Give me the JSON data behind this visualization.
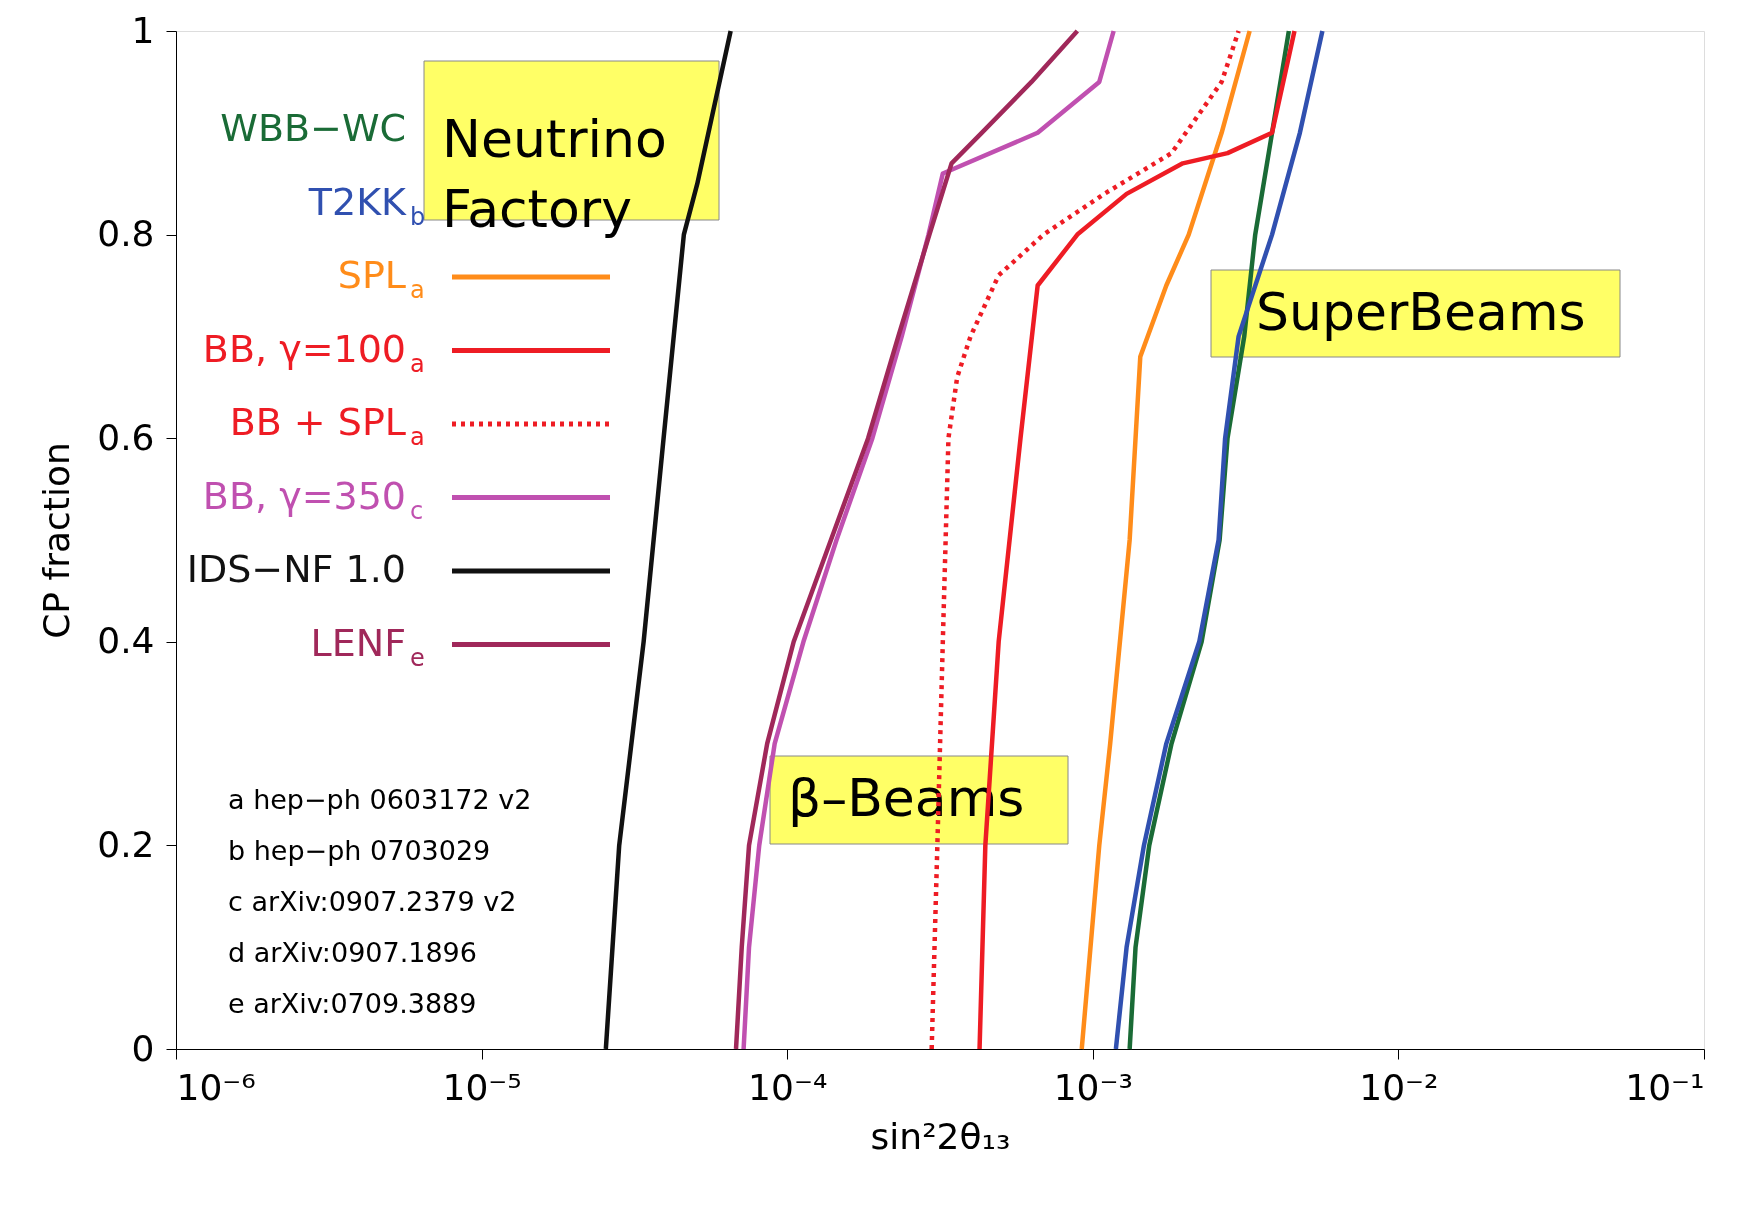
{
  "chart_data": {
    "type": "line",
    "xlabel": "sin²2θ₁₃",
    "ylabel": "CP fraction",
    "log": "x",
    "xlim": [
      1e-06,
      0.1
    ],
    "xticks": [
      {
        "value": 1e-06,
        "label": "10⁻⁶"
      },
      {
        "value": 1e-05,
        "label": "10⁻⁵"
      },
      {
        "value": 0.0001,
        "label": "10⁻⁴"
      },
      {
        "value": 0.001,
        "label": "10⁻³"
      },
      {
        "value": 0.01,
        "label": "10⁻²"
      },
      {
        "value": 0.1,
        "label": "10⁻¹"
      }
    ],
    "ylim": [
      0,
      1
    ],
    "yticks": [
      0,
      0.2,
      0.4,
      0.6,
      0.8,
      1
    ],
    "grid": false,
    "legend": "top left",
    "marker": "none",
    "series": [
      {
        "name": "WBB−WC",
        "color": "#1a6b36",
        "x": [
          0.00132,
          0.00138,
          0.00153,
          0.00181,
          0.00227,
          0.0026,
          0.00276,
          0.00313,
          0.0034,
          0.00386,
          0.00438
        ],
        "values": [
          0,
          0.1,
          0.2,
          0.3,
          0.4,
          0.5,
          0.6,
          0.7,
          0.8,
          0.9,
          1
        ]
      },
      {
        "name": "T2KK$_{b}$",
        "color": "#3050b0",
        "x": [
          0.00119,
          0.00129,
          0.00147,
          0.00174,
          0.00223,
          0.00258,
          0.00271,
          0.003,
          0.00386,
          0.00476,
          0.00564
        ],
        "values": [
          0,
          0.1,
          0.2,
          0.3,
          0.4,
          0.5,
          0.6,
          0.7,
          0.8,
          0.9,
          1
        ]
      },
      {
        "name": "SPL$_{a}$",
        "color": "#ff8c1a",
        "x": [
          0.00092,
          0.00105,
          0.00114,
          0.00132,
          0.00143,
          0.00174,
          0.00206,
          0.00264,
          0.00326
        ],
        "values": [
          0,
          0.2,
          0.3,
          0.5,
          0.68,
          0.75,
          0.8,
          0.9,
          1
        ]
      },
      {
        "name": "BB, γ=100$_{a}$",
        "color": "#ee1c24",
        "x": [
          0.000426,
          0.000445,
          0.000492,
          0.00058,
          0.00066,
          0.00089,
          0.00129,
          0.00197,
          0.00276,
          0.00386,
          0.00457
        ],
        "values": [
          0,
          0.2,
          0.4,
          0.6,
          0.75,
          0.8,
          0.84,
          0.87,
          0.88,
          0.9,
          1
        ]
      },
      {
        "name": "BB + SPL$_{a}$",
        "color": "#ee1c24",
        "line_style": "dotted",
        "x": [
          0.000297,
          0.00031,
          0.000323,
          0.000337,
          0.00036,
          0.000398,
          0.000492,
          0.00069,
          0.00109,
          0.00181,
          0.00264,
          0.003
        ],
        "values": [
          0,
          0.2,
          0.4,
          0.6,
          0.66,
          0.7,
          0.76,
          0.8,
          0.84,
          0.88,
          0.95,
          1
        ]
      },
      {
        "name": "BB, γ=350$_{c}$",
        "color": "#c050b0",
        "x": [
          7.2e-05,
          7.5e-05,
          8.1e-05,
          9.1e-05,
          0.000113,
          0.000145,
          0.00019,
          0.000237,
          0.00029,
          0.000323,
          0.00066,
          0.00105,
          0.00117
        ],
        "values": [
          0,
          0.1,
          0.2,
          0.3,
          0.4,
          0.5,
          0.6,
          0.7,
          0.8,
          0.86,
          0.9,
          0.95,
          1
        ]
      },
      {
        "name": "IDS−NF 1.0",
        "color": "#111111",
        "x": [
          2.55e-05,
          2.82e-05,
          3.39e-05,
          3.94e-05,
          4.59e-05,
          5.08e-05,
          6.53e-05
        ],
        "values": [
          0,
          0.2,
          0.4,
          0.6,
          0.8,
          0.85,
          1
        ]
      },
      {
        "name": "LENF$_{e}$",
        "color": "#a0285a",
        "x": [
          6.8e-05,
          7.1e-05,
          7.5e-05,
          8.6e-05,
          0.000105,
          0.000139,
          0.000184,
          0.000231,
          0.000292,
          0.000345,
          0.000433,
          0.00063,
          0.00089
        ],
        "values": [
          0,
          0.1,
          0.2,
          0.3,
          0.4,
          0.5,
          0.6,
          0.7,
          0.8,
          0.87,
          0.9,
          0.95,
          1
        ]
      }
    ],
    "annotations": [
      "Neutrino Factory",
      "SuperBeams",
      "β–Beams",
      "a  hep−ph 0603172 v2",
      "b  hep−ph 0703029",
      "c  arXiv:0907.2379 v2",
      "d  arXiv:0907.1896",
      "e  arXiv:0709.3889"
    ]
  }
}
